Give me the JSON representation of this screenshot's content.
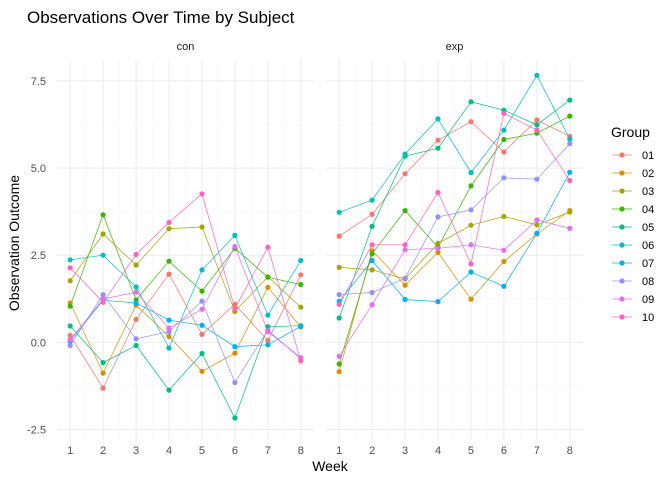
{
  "chart_data": {
    "type": "line",
    "title": "Observations Over Time by Subject",
    "xlabel": "Week",
    "ylabel": "Observation Outcome",
    "x": [
      1,
      2,
      3,
      4,
      5,
      6,
      7,
      8
    ],
    "ylim": [
      -2.8,
      8.1
    ],
    "yticks": [
      -2.5,
      0.0,
      2.5,
      5.0,
      7.5
    ],
    "ytick_labels": [
      "-2.5",
      "0.0",
      "2.5",
      "5.0",
      "7.5"
    ],
    "grid": true,
    "legend": {
      "title": "Group",
      "placement": "right"
    },
    "colors": {
      "01": "#F8766D",
      "02": "#D89000",
      "03": "#A3A500",
      "04": "#39B600",
      "05": "#00BF7D",
      "06": "#00BFC4",
      "07": "#00B0F6",
      "08": "#9590FF",
      "09": "#E76BF3",
      "10": "#FF62BC"
    },
    "facets": [
      {
        "label": "con",
        "series": [
          {
            "name": "01",
            "values": [
              0.2,
              -1.31,
              0.66,
              1.96,
              0.23,
              1.09,
              0.05,
              1.94
            ]
          },
          {
            "name": "02",
            "values": [
              1.13,
              -0.88,
              1.07,
              0.17,
              -0.83,
              -0.31,
              1.58,
              0.44
            ]
          },
          {
            "name": "03",
            "values": [
              1.77,
              3.11,
              2.22,
              3.26,
              3.31,
              0.89,
              1.88,
              1.01
            ]
          },
          {
            "name": "04",
            "values": [
              1.04,
              3.66,
              1.22,
              2.33,
              1.47,
              2.7,
              1.87,
              1.66
            ]
          },
          {
            "name": "05",
            "values": [
              0.47,
              -0.58,
              -0.09,
              -1.37,
              -0.32,
              -2.17,
              0.45,
              0.48
            ]
          },
          {
            "name": "06",
            "values": [
              2.37,
              2.5,
              1.59,
              -0.16,
              2.08,
              3.07,
              0.78,
              2.35
            ]
          },
          {
            "name": "07",
            "values": [
              0.03,
              1.21,
              1.13,
              0.64,
              0.49,
              -0.12,
              -0.07,
              0.46
            ]
          },
          {
            "name": "08",
            "values": [
              -0.09,
              1.37,
              0.1,
              0.31,
              1.18,
              -1.15,
              0.35,
              -0.47
            ]
          },
          {
            "name": "09",
            "values": [
              0.08,
              1.24,
              1.44,
              0.41,
              0.95,
              2.75,
              0.31,
              -0.44
            ]
          },
          {
            "name": "10",
            "values": [
              2.14,
              1.15,
              2.52,
              3.44,
              4.26,
              0.97,
              2.73,
              -0.53
            ]
          }
        ]
      },
      {
        "label": "exp",
        "series": [
          {
            "name": "01",
            "values": [
              3.05,
              3.67,
              4.84,
              5.8,
              6.33,
              5.46,
              6.38,
              5.91
            ]
          },
          {
            "name": "02",
            "values": [
              -0.84,
              2.63,
              1.64,
              2.58,
              1.24,
              2.32,
              3.11,
              3.78
            ]
          },
          {
            "name": "03",
            "values": [
              2.15,
              2.08,
              1.82,
              2.84,
              3.36,
              3.61,
              3.37,
              3.74
            ]
          },
          {
            "name": "04",
            "values": [
              -0.62,
              2.54,
              3.78,
              2.73,
              4.49,
              5.82,
              6.0,
              6.49
            ]
          },
          {
            "name": "05",
            "values": [
              0.7,
              3.33,
              5.34,
              5.57,
              6.9,
              6.66,
              6.24,
              6.95
            ]
          },
          {
            "name": "06",
            "values": [
              3.73,
              4.08,
              5.4,
              6.41,
              4.87,
              6.09,
              7.66,
              5.83
            ]
          },
          {
            "name": "07",
            "values": [
              1.18,
              2.35,
              1.23,
              1.17,
              2.02,
              1.61,
              3.13,
              4.88
            ]
          },
          {
            "name": "08",
            "values": [
              1.37,
              1.43,
              1.84,
              3.6,
              3.8,
              4.72,
              4.68,
              5.7
            ]
          },
          {
            "name": "09",
            "values": [
              -0.4,
              1.08,
              2.66,
              2.7,
              2.8,
              2.64,
              3.51,
              3.27
            ]
          },
          {
            "name": "10",
            "values": [
              1.09,
              2.8,
              2.8,
              4.3,
              2.25,
              6.57,
              6.09,
              4.64
            ]
          }
        ]
      }
    ]
  }
}
